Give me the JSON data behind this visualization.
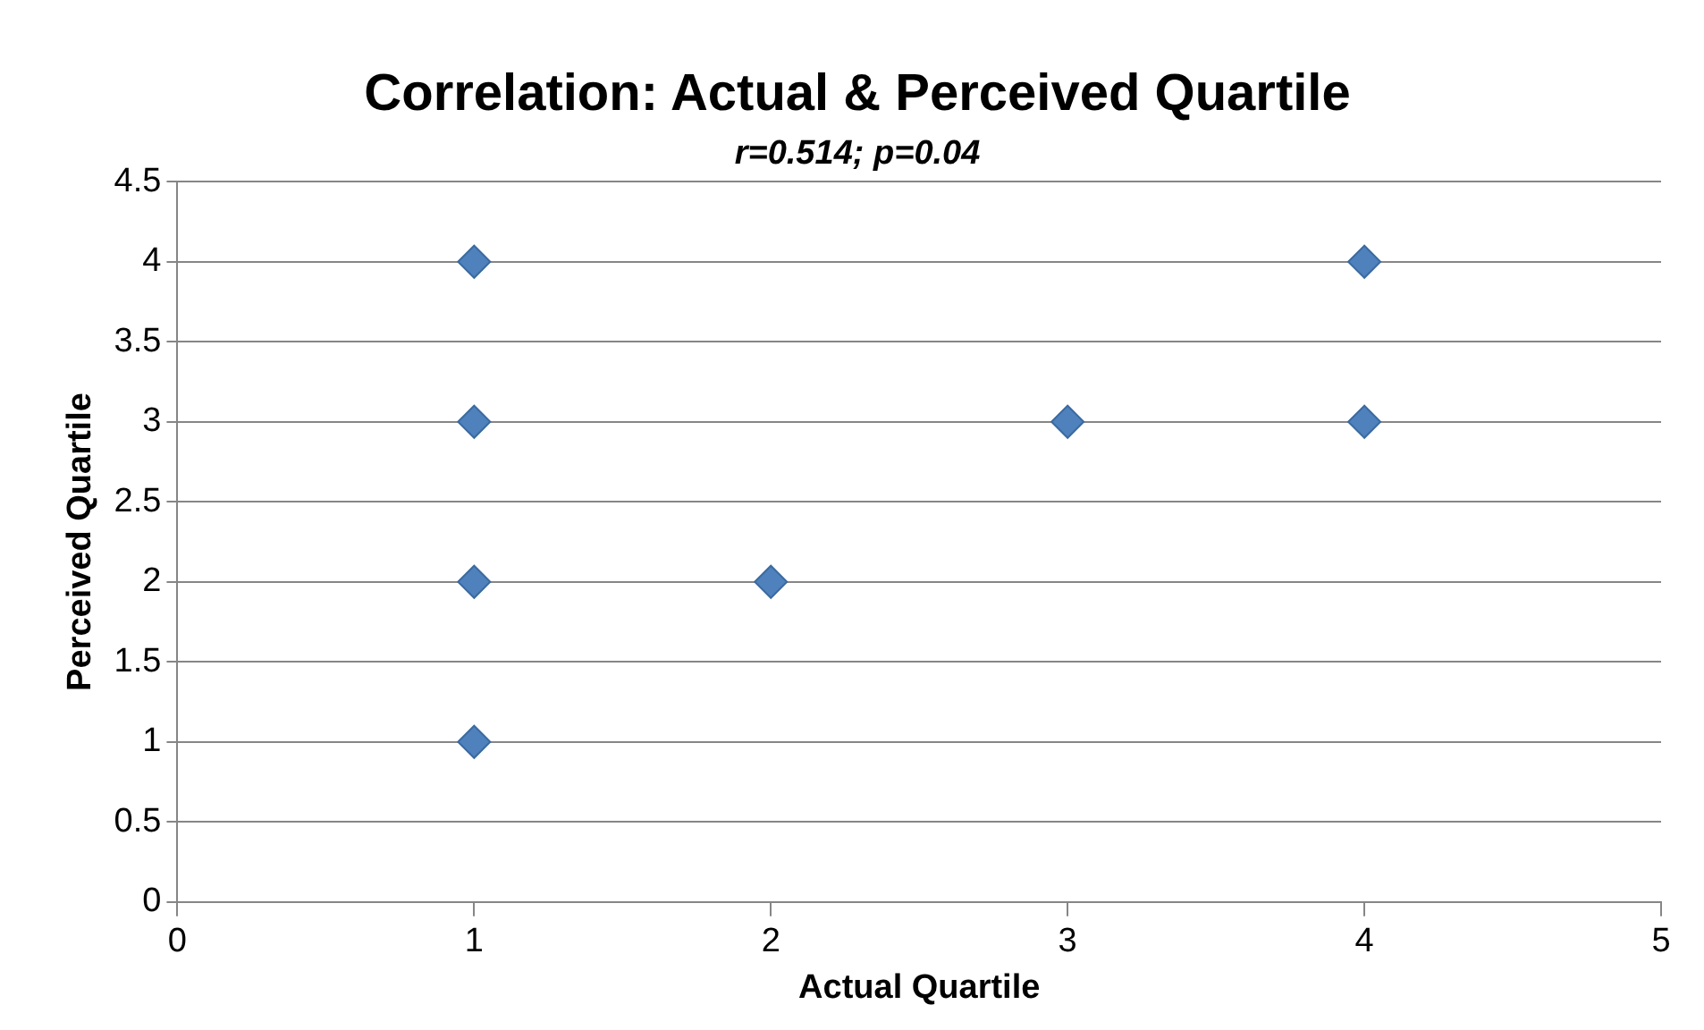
{
  "chart_data": {
    "type": "scatter",
    "title": "Correlation: Actual & Perceived Quartile",
    "subtitle": "r=0.514; p=0.04",
    "xlabel": "Actual Quartile",
    "ylabel": "Perceived Quartile",
    "x": [
      1,
      1,
      1,
      1,
      2,
      3,
      4,
      4
    ],
    "series": [
      {
        "color": "#4f81bd",
        "values": [
          4,
          3,
          2,
          1,
          2,
          3,
          4,
          3
        ]
      }
    ],
    "xlim": [
      0,
      5
    ],
    "xticks": [
      0,
      1,
      2,
      3,
      4,
      5
    ],
    "ylim": [
      0,
      4.5
    ],
    "yticks": [
      0,
      0.5,
      1,
      1.5,
      2,
      2.5,
      3,
      3.5,
      4,
      4.5
    ],
    "grid": "y",
    "legend": false,
    "marker": "diamond"
  }
}
